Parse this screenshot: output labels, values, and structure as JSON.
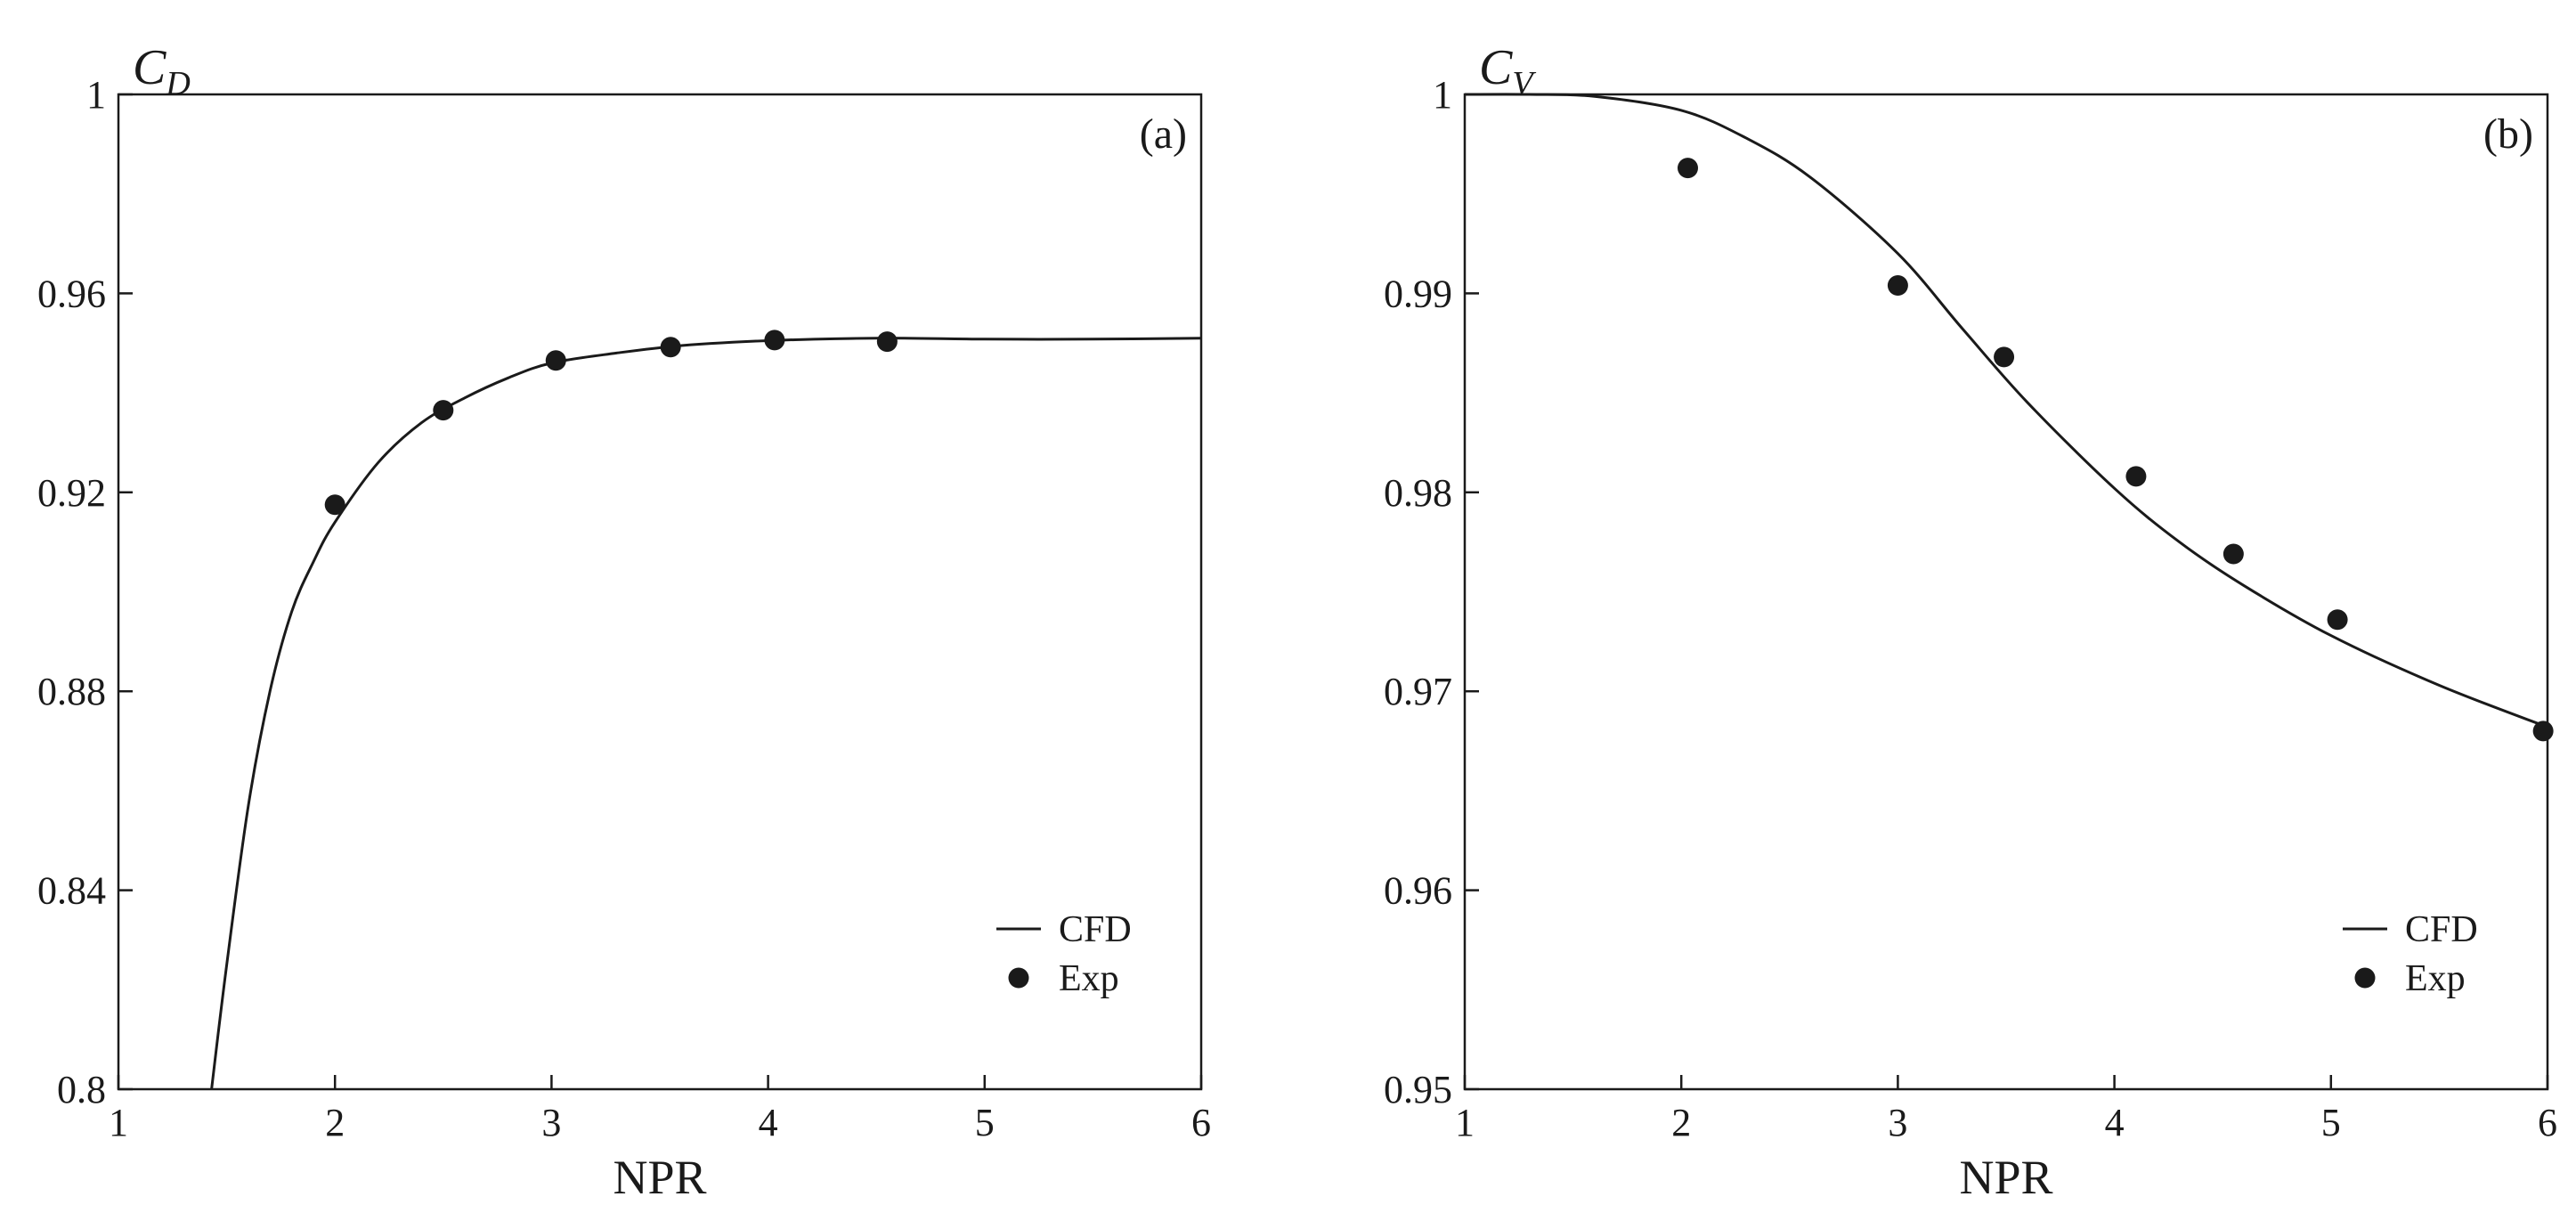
{
  "chart_data": [
    {
      "type": "line",
      "panel_label": "(a)",
      "xlabel": "NPR",
      "ylabel_main": "C",
      "ylabel_sub": "D",
      "xlim": [
        1,
        6
      ],
      "ylim": [
        0.8,
        1
      ],
      "xticks": [
        1,
        2,
        3,
        4,
        5,
        6
      ],
      "yticks": [
        0.8,
        0.84,
        0.88,
        0.92,
        0.96,
        1
      ],
      "xtick_labels": [
        "1",
        "2",
        "3",
        "4",
        "5",
        "6"
      ],
      "ytick_labels": [
        "0.8",
        "0.84",
        "0.88",
        "0.92",
        "0.96",
        "1"
      ],
      "grid": false,
      "legend_position": "bottom-right",
      "series": [
        {
          "name": "CFD",
          "kind": "line",
          "color": "#1a1a1a",
          "x": [
            1.43,
            1.5,
            1.6,
            1.7,
            1.8,
            1.9,
            2.0,
            2.2,
            2.4,
            2.6,
            2.8,
            3.0,
            3.3,
            3.6,
            4.0,
            4.5,
            5.0,
            5.5,
            6.0
          ],
          "y": [
            0.8,
            0.825,
            0.857,
            0.88,
            0.896,
            0.906,
            0.914,
            0.926,
            0.934,
            0.939,
            0.943,
            0.946,
            0.948,
            0.9495,
            0.9505,
            0.951,
            0.9508,
            0.9508,
            0.951
          ]
        },
        {
          "name": "Exp",
          "kind": "scatter",
          "color": "#1a1a1a",
          "x": [
            2.0,
            2.5,
            3.02,
            3.55,
            4.03,
            4.55
          ],
          "y": [
            0.9175,
            0.9365,
            0.9465,
            0.9492,
            0.9506,
            0.9503
          ]
        }
      ]
    },
    {
      "type": "line",
      "panel_label": "(b)",
      "xlabel": "NPR",
      "ylabel_main": "C",
      "ylabel_sub": "V",
      "xlim": [
        1,
        6
      ],
      "ylim": [
        0.95,
        1
      ],
      "xticks": [
        1,
        2,
        3,
        4,
        5,
        6
      ],
      "yticks": [
        0.95,
        0.96,
        0.97,
        0.98,
        0.99,
        1
      ],
      "xtick_labels": [
        "1",
        "2",
        "3",
        "4",
        "5",
        "6"
      ],
      "ytick_labels": [
        "0.95",
        "0.96",
        "0.97",
        "0.98",
        "0.99",
        "1"
      ],
      "grid": false,
      "legend_position": "bottom-right",
      "series": [
        {
          "name": "CFD",
          "kind": "line",
          "color": "#1a1a1a",
          "x": [
            1.0,
            1.3,
            1.6,
            2.0,
            2.3,
            2.6,
            3.0,
            3.3,
            3.6,
            4.0,
            4.3,
            4.6,
            5.0,
            5.5,
            6.0
          ],
          "y": [
            1.0,
            1.0,
            0.9999,
            0.9992,
            0.9978,
            0.9958,
            0.992,
            0.9882,
            0.9845,
            0.9802,
            0.9775,
            0.9753,
            0.9728,
            0.9703,
            0.9682
          ]
        },
        {
          "name": "Exp",
          "kind": "scatter",
          "color": "#1a1a1a",
          "x": [
            2.03,
            3.0,
            3.49,
            4.1,
            4.55,
            5.03,
            5.98
          ],
          "y": [
            0.9963,
            0.9904,
            0.9868,
            0.9808,
            0.9769,
            0.9736,
            0.968
          ]
        }
      ]
    }
  ]
}
